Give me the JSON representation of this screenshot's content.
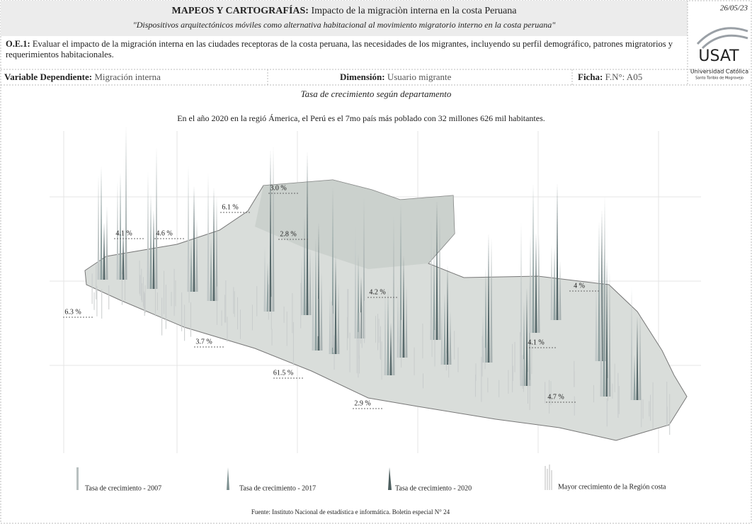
{
  "header": {
    "title_bold": "MAPEOS Y CARTOGRAFÍAS:",
    "title": "Impacto de la migraciòn interna en la costa Peruana",
    "subtitle": "\"Dispositivos arquitectónicos móviles como alternativa habitacional al movimiento migratorio interno en la costa peruana\"",
    "date": "26/05/23",
    "logo": "USAT",
    "university": "Universidad Católica",
    "university_sub": "Santo Toribio de Mogrovejo"
  },
  "objective": {
    "label": "O.E.1:",
    "text": "Evaluar el impacto de la migración interna en las ciudades receptoras de la costa peruana, las necesidades de los migrantes, incluyendo su perfil demográfico, patrones migratorios y requerimientos habitacionales."
  },
  "fields": [
    {
      "label": "Variable Dependiente:",
      "value": "Migración interna"
    },
    {
      "label": "Dimensión:",
      "value": "Usuario migrante"
    },
    {
      "label": "Ficha:",
      "value": "F.N°: A05"
    }
  ],
  "content": {
    "title": "Tasa de crecimiento según departamento",
    "description": "En el año 2020 en la regió Ámerica, el Perú es el 7mo país más poblado con 32 millones 626 mil habitantes."
  },
  "map_labels": [
    "4.1 %",
    "4.6 %",
    "6.1 %",
    "3.0 %",
    "2.8 %",
    "4.2 %",
    "4 %",
    "6.3 %",
    "3.7 %",
    "4.1 %",
    "61.5 %",
    "2.9 %",
    "4.7 %"
  ],
  "legend": [
    "Tasa de crecimiento - 2007",
    "Tasa de crecimiento - 2017",
    "Tasa de crecimiento - 2020",
    "Mayor crecimiento de la Región costa"
  ],
  "source": "Fuente: Instituto Nacional de estadística e informática. Boletin especial N° 24"
}
